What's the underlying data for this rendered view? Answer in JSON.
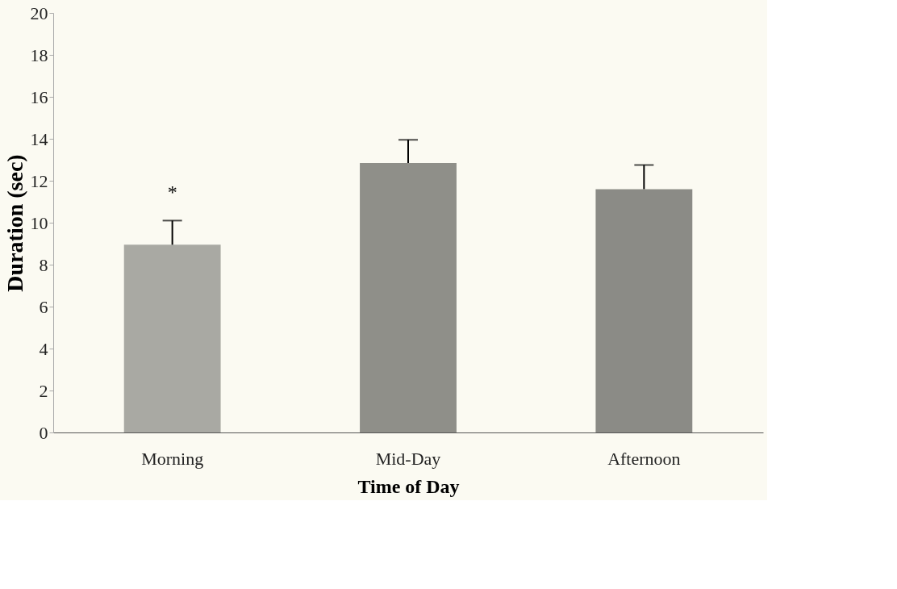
{
  "chart_data": {
    "type": "bar",
    "xlabel": "Time of Day",
    "ylabel": "Duration (sec)",
    "categories": [
      "Morning",
      "Mid-Day",
      "Afternoon"
    ],
    "values": [
      8.95,
      12.85,
      11.6
    ],
    "colors": [
      "#a9a9a3",
      "#8f8f89",
      "#8b8b86"
    ],
    "errors": [
      [
        8.95,
        10.1
      ],
      [
        12.85,
        13.95
      ],
      [
        11.6,
        12.75
      ]
    ],
    "annotations": [
      "*"
    ],
    "ylim": [
      0,
      20
    ],
    "yticks": [
      0,
      2,
      4,
      6,
      8,
      10,
      12,
      14,
      16,
      18,
      20
    ],
    "grid": false,
    "legend": false
  }
}
